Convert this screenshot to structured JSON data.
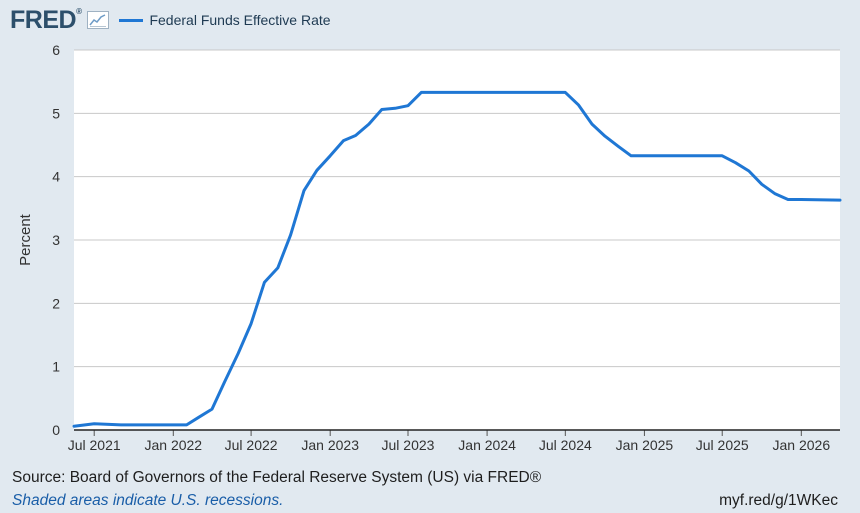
{
  "header": {
    "logo_text": "FRED",
    "logo_mark": "®",
    "graph_icon": "line-chart-icon"
  },
  "colors": {
    "background": "#e1e9f0",
    "plot_background": "#ffffff",
    "series_line": "#1f77d4",
    "gridline": "#c8c8c8",
    "logo": "#2c4f6b"
  },
  "chart_data": {
    "type": "line",
    "title": "",
    "xlabel": "",
    "ylabel": "Percent",
    "ylim": [
      0,
      6
    ],
    "yticks": [
      "0",
      "1",
      "2",
      "3",
      "4",
      "5",
      "6"
    ],
    "xlim": [
      "2021-05-15",
      "2026-04-01"
    ],
    "xticks": [
      {
        "date": "2021-07-01",
        "label": "Jul 2021"
      },
      {
        "date": "2022-01-01",
        "label": "Jan 2022"
      },
      {
        "date": "2022-07-01",
        "label": "Jul 2022"
      },
      {
        "date": "2023-01-01",
        "label": "Jan 2023"
      },
      {
        "date": "2023-07-01",
        "label": "Jul 2023"
      },
      {
        "date": "2024-01-01",
        "label": "Jan 2024"
      },
      {
        "date": "2024-07-01",
        "label": "Jul 2024"
      },
      {
        "date": "2025-01-01",
        "label": "Jan 2025"
      },
      {
        "date": "2025-07-01",
        "label": "Jul 2025"
      },
      {
        "date": "2026-01-01",
        "label": "Jan 2026"
      }
    ],
    "grid": true,
    "legend_position": "top-left",
    "series": [
      {
        "name": "Federal Funds Effective Rate",
        "color": "#1f77d4",
        "x": [
          "2021-05-15",
          "2021-07-01",
          "2021-09-01",
          "2021-11-01",
          "2022-01-01",
          "2022-02-01",
          "2022-03-01",
          "2022-04-01",
          "2022-05-01",
          "2022-06-01",
          "2022-07-01",
          "2022-08-01",
          "2022-09-01",
          "2022-10-01",
          "2022-11-01",
          "2022-12-01",
          "2023-01-01",
          "2023-02-01",
          "2023-03-01",
          "2023-04-01",
          "2023-05-01",
          "2023-06-01",
          "2023-07-01",
          "2023-08-01",
          "2024-07-01",
          "2024-08-01",
          "2024-09-01",
          "2024-10-01",
          "2024-11-01",
          "2024-12-01",
          "2025-01-01",
          "2025-07-01",
          "2025-08-01",
          "2025-09-01",
          "2025-10-01",
          "2025-11-01",
          "2025-12-01",
          "2026-01-01",
          "2026-04-01"
        ],
        "y": [
          0.06,
          0.1,
          0.08,
          0.08,
          0.08,
          0.08,
          0.2,
          0.33,
          0.77,
          1.21,
          1.68,
          2.33,
          2.56,
          3.08,
          3.78,
          4.1,
          4.33,
          4.57,
          4.65,
          4.83,
          5.06,
          5.08,
          5.12,
          5.33,
          5.33,
          5.13,
          4.83,
          4.64,
          4.48,
          4.33,
          4.33,
          4.33,
          4.22,
          4.09,
          3.88,
          3.73,
          3.64,
          3.64,
          3.63
        ]
      }
    ]
  },
  "footer": {
    "source": "Source: Board of Governors of the Federal Reserve System (US) via FRED®",
    "shaded": "Shaded areas indicate U.S. recessions.",
    "url": "myf.red/g/1WKec"
  }
}
